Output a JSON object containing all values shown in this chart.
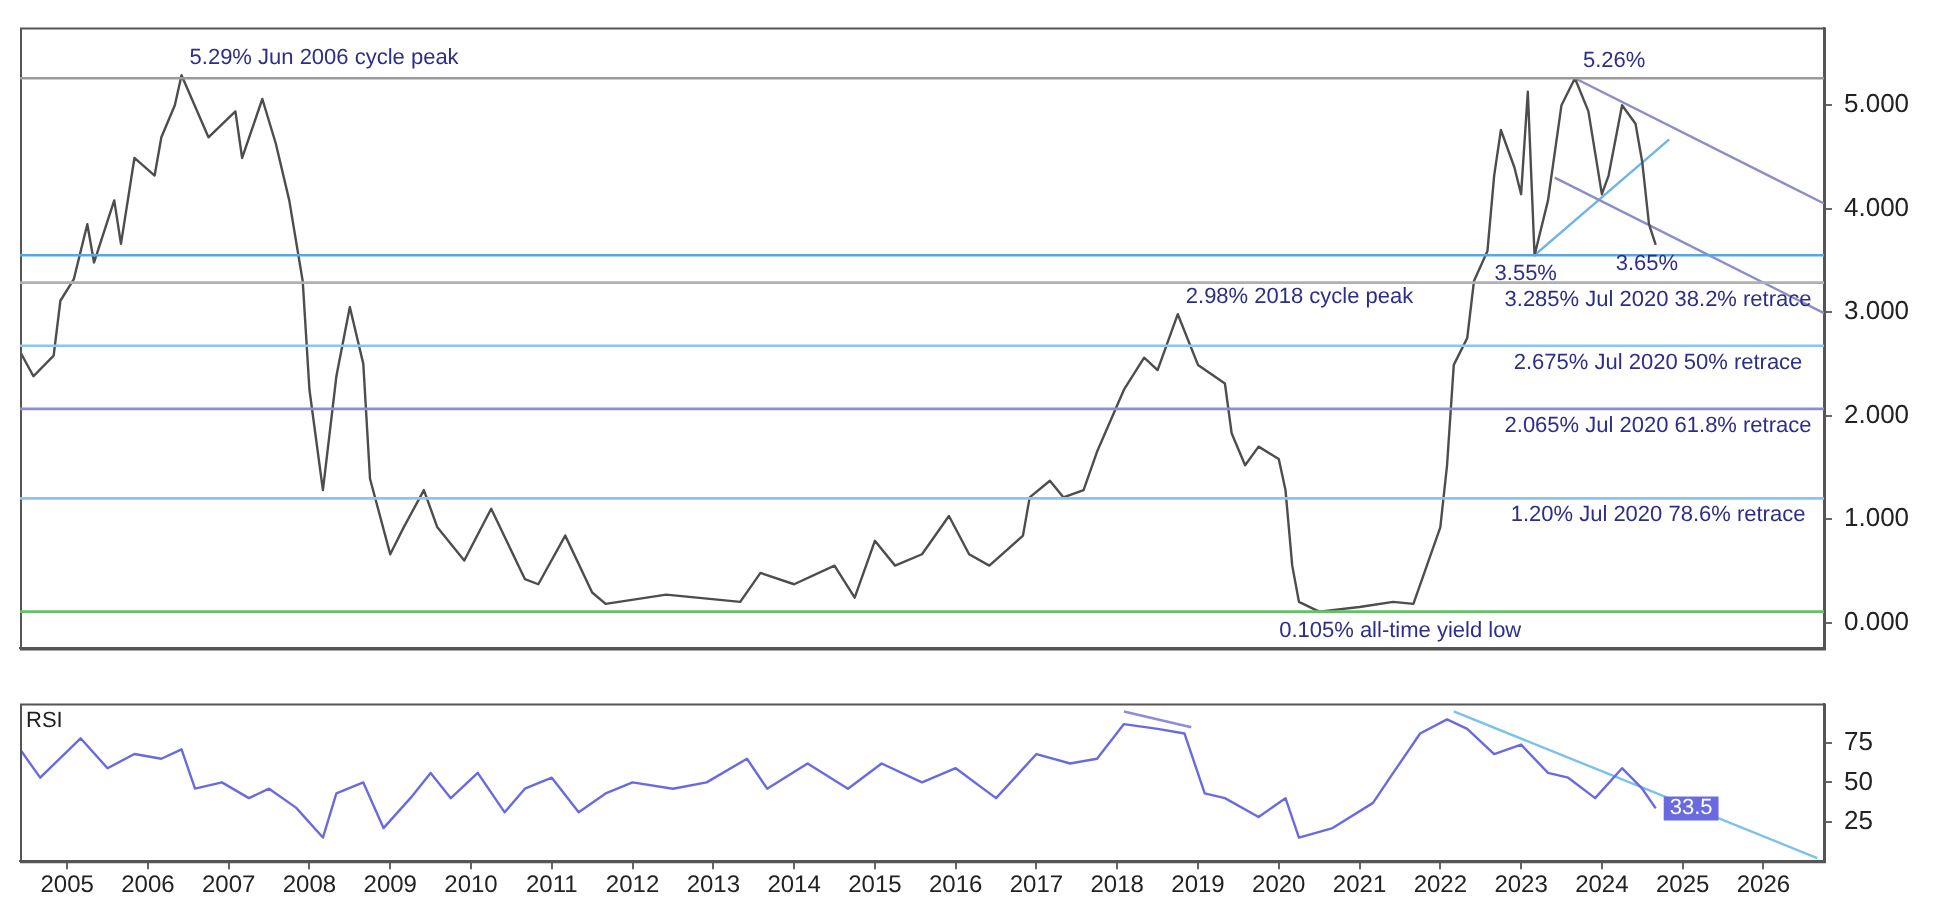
{
  "chart_data": [
    {
      "type": "line",
      "tick_labels": "y",
      "legend": false,
      "grid": false,
      "marker": "none",
      "x": [
        "2004-06",
        "2004-08",
        "2004-11",
        "2004-12",
        "2005-02",
        "2005-04",
        "2005-05",
        "2005-08",
        "2005-09",
        "2005-11",
        "2006-02",
        "2006-03",
        "2006-05",
        "2006-06",
        "2006-10",
        "2007-02",
        "2007-03",
        "2007-06",
        "2007-08",
        "2007-10",
        "2007-12",
        "2008-01",
        "2008-03",
        "2008-05",
        "2008-07",
        "2008-09",
        "2008-10",
        "2009-01",
        "2009-03",
        "2009-06",
        "2009-08",
        "2009-12",
        "2010-04",
        "2010-09",
        "2010-11",
        "2011-03",
        "2011-07",
        "2011-09",
        "2012-06",
        "2013-05",
        "2013-08",
        "2014-01",
        "2014-07",
        "2014-10",
        "2015-01",
        "2015-04",
        "2015-08",
        "2015-12",
        "2016-03",
        "2016-06",
        "2016-11",
        "2016-12",
        "2017-03",
        "2017-05",
        "2017-08",
        "2017-10",
        "2018-02",
        "2018-05",
        "2018-07",
        "2018-10",
        "2019-01",
        "2019-05",
        "2019-06",
        "2019-08",
        "2019-10",
        "2020-01",
        "2020-02",
        "2020-03",
        "2020-04",
        "2020-07",
        "2021-01",
        "2021-06",
        "2021-09",
        "2021-11",
        "2022-01",
        "2022-02",
        "2022-03",
        "2022-05",
        "2022-06",
        "2022-08",
        "2022-09",
        "2022-10",
        "2022-12",
        "2023-01",
        "2023-02",
        "2023-03",
        "2023-05",
        "2023-07",
        "2023-09",
        "2023-11",
        "2024-01",
        "2024-02",
        "2024-04",
        "2024-06",
        "2024-07",
        "2024-08",
        "2024-09"
      ],
      "series": [
        {
          "color": "#4d4d4d",
          "values": [
            2.62,
            2.38,
            2.58,
            3.11,
            3.32,
            3.85,
            3.48,
            4.08,
            3.66,
            4.49,
            4.32,
            4.69,
            5.0,
            5.29,
            4.69,
            4.94,
            4.49,
            5.06,
            4.63,
            4.08,
            3.3,
            2.25,
            1.28,
            2.38,
            3.05,
            2.5,
            1.39,
            0.66,
            0.92,
            1.28,
            0.92,
            0.6,
            1.1,
            0.42,
            0.37,
            0.84,
            0.29,
            0.18,
            0.27,
            0.2,
            0.48,
            0.37,
            0.55,
            0.24,
            0.79,
            0.55,
            0.66,
            1.03,
            0.66,
            0.55,
            0.84,
            1.21,
            1.37,
            1.21,
            1.28,
            1.65,
            2.25,
            2.56,
            2.44,
            2.98,
            2.49,
            2.31,
            1.83,
            1.52,
            1.7,
            1.58,
            1.28,
            0.55,
            0.2,
            0.105,
            0.15,
            0.2,
            0.18,
            0.55,
            0.92,
            1.52,
            2.49,
            2.75,
            3.3,
            3.59,
            4.32,
            4.76,
            4.4,
            4.14,
            5.13,
            3.55,
            4.08,
            5.0,
            5.26,
            4.94,
            4.14,
            4.32,
            5.0,
            4.82,
            4.45,
            3.85,
            3.65
          ]
        },
        {
          "type": "line",
          "color": "#8c8cc8",
          "x": [
            "2023-09",
            "2026-10"
          ],
          "values": [
            5.26,
            4.05
          ]
        },
        {
          "type": "line",
          "color": "#8c8cc8",
          "x": [
            "2023-06",
            "2026-10"
          ],
          "values": [
            4.3,
            2.99
          ]
        },
        {
          "type": "line",
          "color": "#6fb4e6",
          "x": [
            "2023-03",
            "2024-11"
          ],
          "values": [
            3.55,
            4.67
          ]
        }
      ],
      "xlim": [
        "2004-06",
        "2026-10"
      ],
      "ylim": [
        -0.25,
        5.75
      ],
      "yticks": [
        {
          "value": 0,
          "label": "0.000"
        },
        {
          "value": 1,
          "label": "1.000"
        },
        {
          "value": 2,
          "label": "2.000"
        },
        {
          "value": 3,
          "label": "3.000"
        },
        {
          "value": 4,
          "label": "4.000"
        },
        {
          "value": 5,
          "label": "5.000"
        }
      ],
      "ref_lines": [
        {
          "axis": "y",
          "value": 5.26,
          "color": "#9a9a9a"
        },
        {
          "axis": "y",
          "value": 3.55,
          "color": "#5aa6e0"
        },
        {
          "axis": "y",
          "value": 3.285,
          "label": "3.285% Jul 2020 38.2% retrace",
          "color": "#b0b0b0"
        },
        {
          "axis": "y",
          "value": 2.675,
          "label": "2.675% Jul 2020 50% retrace",
          "color": "#8cc4ee"
        },
        {
          "axis": "y",
          "value": 2.065,
          "label": "2.065% Jul 2020 61.8% retrace",
          "color": "#8c8cd8"
        },
        {
          "axis": "y",
          "value": 1.2,
          "label": "1.20% Jul 2020 78.6% retrace",
          "color": "#8cc4ee"
        },
        {
          "axis": "y",
          "value": 0.105,
          "color": "#66c066"
        }
      ],
      "annotations": [
        {
          "text": "5.29% Jun 2006 cycle peak",
          "x": "2006-06",
          "y": 5.29
        },
        {
          "text": "2.98% 2018 cycle peak",
          "x": "2018-10",
          "y": 2.98
        },
        {
          "text": "5.26%",
          "x": "2023-09",
          "y": 5.26
        },
        {
          "text": "3.55%",
          "x": "2023-03",
          "y": 3.55
        },
        {
          "text": "3.65%",
          "x": "2024-09",
          "y": 3.65
        },
        {
          "text": "0.105% all-time yield low",
          "x": "2020-07",
          "y": 0.105
        }
      ]
    },
    {
      "type": "line",
      "legend": false,
      "grid": false,
      "marker": "none",
      "x": [
        "2004-06",
        "2004-09",
        "2005-03",
        "2005-07",
        "2005-11",
        "2006-03",
        "2006-06",
        "2006-08",
        "2006-12",
        "2007-04",
        "2007-07",
        "2007-11",
        "2008-03",
        "2008-05",
        "2008-09",
        "2008-12",
        "2009-04",
        "2009-07",
        "2009-10",
        "2010-02",
        "2010-06",
        "2010-09",
        "2011-01",
        "2011-05",
        "2011-09",
        "2012-01",
        "2012-07",
        "2012-12",
        "2013-06",
        "2013-09",
        "2014-03",
        "2014-09",
        "2015-02",
        "2015-08",
        "2016-01",
        "2016-07",
        "2017-01",
        "2017-06",
        "2017-10",
        "2018-02",
        "2018-07",
        "2018-11",
        "2019-02",
        "2019-05",
        "2019-10",
        "2020-02",
        "2020-04",
        "2020-09",
        "2021-03",
        "2021-06",
        "2021-10",
        "2022-02",
        "2022-05",
        "2022-09",
        "2023-01",
        "2023-05",
        "2023-08",
        "2023-12",
        "2024-04",
        "2024-07",
        "2024-09"
      ],
      "series": [
        {
          "color": "#6a6ae0",
          "values": [
            71,
            53,
            78,
            59,
            68,
            65,
            71,
            46,
            50,
            40,
            46,
            34,
            15,
            43,
            50,
            21,
            40,
            56,
            40,
            56,
            31,
            46,
            53,
            31,
            43,
            50,
            46,
            50,
            65,
            46,
            62,
            46,
            62,
            50,
            59,
            40,
            68,
            62,
            65,
            87,
            84,
            81,
            43,
            40,
            28,
            40,
            15,
            21,
            37,
            56,
            81,
            90,
            84,
            68,
            74,
            56,
            53,
            40,
            59,
            46,
            33.5
          ],
          "value_labels": [
            null,
            null,
            null,
            null,
            null,
            null,
            null,
            null,
            null,
            null,
            null,
            null,
            null,
            null,
            null,
            null,
            null,
            null,
            null,
            null,
            null,
            null,
            null,
            null,
            null,
            null,
            null,
            null,
            null,
            null,
            null,
            null,
            null,
            null,
            null,
            null,
            null,
            null,
            null,
            null,
            null,
            null,
            null,
            null,
            null,
            null,
            null,
            null,
            null,
            null,
            null,
            null,
            null,
            null,
            null,
            null,
            null,
            null,
            null,
            null,
            "33.5"
          ]
        },
        {
          "type": "line",
          "color": "#8c8cd8",
          "x": [
            "2018-02",
            "2018-12"
          ],
          "values": [
            95,
            85
          ]
        },
        {
          "type": "line",
          "color": "#7cc0ec",
          "x": [
            "2022-03",
            "2026-09"
          ],
          "values": [
            95,
            2
          ]
        }
      ],
      "xlim": [
        "2004-06",
        "2026-10"
      ],
      "xticks": [
        {
          "value": "2005",
          "label": "2005"
        },
        {
          "value": "2006",
          "label": "2006"
        },
        {
          "value": "2007",
          "label": "2007"
        },
        {
          "value": "2008",
          "label": "2008"
        },
        {
          "value": "2009",
          "label": "2009"
        },
        {
          "value": "2010",
          "label": "2010"
        },
        {
          "value": "2011",
          "label": "2011"
        },
        {
          "value": "2012",
          "label": "2012"
        },
        {
          "value": "2013",
          "label": "2013"
        },
        {
          "value": "2014",
          "label": "2014"
        },
        {
          "value": "2015",
          "label": "2015"
        },
        {
          "value": "2016",
          "label": "2016"
        },
        {
          "value": "2017",
          "label": "2017"
        },
        {
          "value": "2018",
          "label": "2018"
        },
        {
          "value": "2019",
          "label": "2019"
        },
        {
          "value": "2020",
          "label": "2020"
        },
        {
          "value": "2021",
          "label": "2021"
        },
        {
          "value": "2022",
          "label": "2022"
        },
        {
          "value": "2023",
          "label": "2023"
        },
        {
          "value": "2024",
          "label": "2024"
        },
        {
          "value": "2025",
          "label": "2025"
        },
        {
          "value": "2026",
          "label": "2026"
        }
      ],
      "ylim": [
        0,
        100
      ],
      "yticks": [
        25,
        50,
        75
      ],
      "annotations": [
        "RSI"
      ]
    }
  ]
}
